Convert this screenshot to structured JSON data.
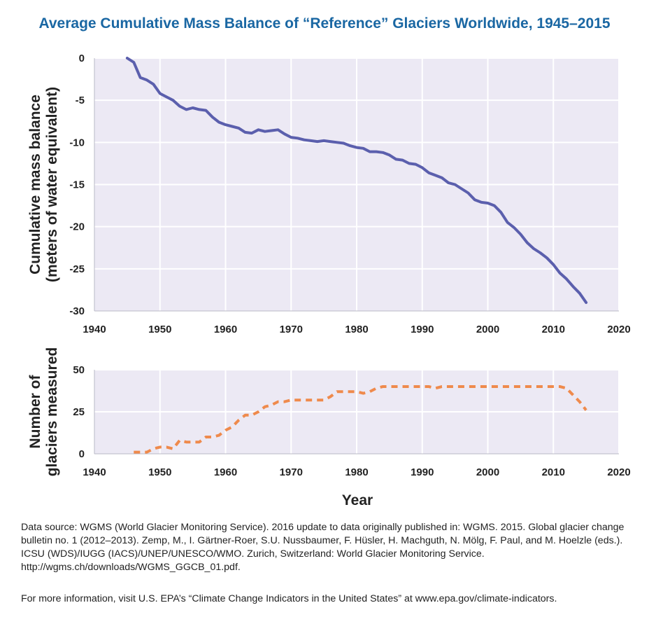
{
  "title": "Average Cumulative Mass Balance of “Reference” Glaciers Worldwide, 1945–2015",
  "colors": {
    "title": "#1a67a3",
    "plot_bg": "#ece9f4",
    "grid": "#ffffff",
    "mass_line": "#5b5fad",
    "count_line": "#ef8a4c"
  },
  "chart_data": [
    {
      "type": "line",
      "ylabel_lines": [
        "Cumulative mass balance",
        "(meters of water equivalent)"
      ],
      "xlim": [
        1940,
        2020
      ],
      "ylim": [
        -30,
        0
      ],
      "xticks": [
        1940,
        1950,
        1960,
        1970,
        1980,
        1990,
        2000,
        2010,
        2020
      ],
      "yticks": [
        0,
        -5,
        -10,
        -15,
        -20,
        -25,
        -30
      ],
      "grid": true,
      "series": [
        {
          "style": "solid",
          "x": [
            1945,
            1946,
            1947,
            1948,
            1949,
            1950,
            1951,
            1952,
            1953,
            1954,
            1955,
            1956,
            1957,
            1958,
            1959,
            1960,
            1961,
            1962,
            1963,
            1964,
            1965,
            1966,
            1967,
            1968,
            1969,
            1970,
            1971,
            1972,
            1973,
            1974,
            1975,
            1976,
            1977,
            1978,
            1979,
            1980,
            1981,
            1982,
            1983,
            1984,
            1985,
            1986,
            1987,
            1988,
            1989,
            1990,
            1991,
            1992,
            1993,
            1994,
            1995,
            1996,
            1997,
            1998,
            1999,
            2000,
            2001,
            2002,
            2003,
            2004,
            2005,
            2006,
            2007,
            2008,
            2009,
            2010,
            2011,
            2012,
            2013,
            2014,
            2015
          ],
          "values": [
            0,
            -0.5,
            -2.3,
            -2.6,
            -3.1,
            -4.2,
            -4.6,
            -5.0,
            -5.7,
            -6.1,
            -5.9,
            -6.1,
            -6.2,
            -7.0,
            -7.6,
            -7.9,
            -8.1,
            -8.3,
            -8.8,
            -8.9,
            -8.5,
            -8.7,
            -8.6,
            -8.5,
            -9.0,
            -9.4,
            -9.5,
            -9.7,
            -9.8,
            -9.9,
            -9.8,
            -9.9,
            -10.0,
            -10.1,
            -10.4,
            -10.6,
            -10.7,
            -11.1,
            -11.1,
            -11.2,
            -11.5,
            -12.0,
            -12.1,
            -12.5,
            -12.6,
            -13.0,
            -13.6,
            -13.9,
            -14.2,
            -14.8,
            -15.0,
            -15.5,
            -16.0,
            -16.8,
            -17.1,
            -17.2,
            -17.5,
            -18.3,
            -19.5,
            -20.1,
            -20.9,
            -21.9,
            -22.6,
            -23.1,
            -23.7,
            -24.5,
            -25.5,
            -26.2,
            -27.1,
            -27.9,
            -29.0
          ]
        }
      ]
    },
    {
      "type": "line",
      "ylabel_lines": [
        "Number of",
        "glaciers measured"
      ],
      "xlabel": "Year",
      "xlim": [
        1940,
        2020
      ],
      "ylim": [
        0,
        50
      ],
      "xticks": [
        1940,
        1950,
        1960,
        1970,
        1980,
        1990,
        2000,
        2010,
        2020
      ],
      "yticks": [
        0,
        25,
        50
      ],
      "grid": true,
      "series": [
        {
          "style": "dashed",
          "x": [
            1946,
            1947,
            1948,
            1949,
            1950,
            1951,
            1952,
            1953,
            1954,
            1955,
            1956,
            1957,
            1958,
            1959,
            1960,
            1961,
            1962,
            1963,
            1964,
            1965,
            1966,
            1967,
            1968,
            1969,
            1970,
            1971,
            1972,
            1973,
            1974,
            1975,
            1976,
            1977,
            1978,
            1979,
            1980,
            1981,
            1982,
            1983,
            1984,
            1985,
            1986,
            1987,
            1988,
            1989,
            1990,
            1991,
            1992,
            1993,
            1994,
            1995,
            1996,
            1997,
            1998,
            1999,
            2000,
            2001,
            2002,
            2003,
            2004,
            2005,
            2006,
            2007,
            2008,
            2009,
            2010,
            2011,
            2012,
            2013,
            2014,
            2015
          ],
          "values": [
            1,
            1,
            1,
            3,
            4,
            4,
            3,
            8,
            7,
            7,
            7,
            10,
            10,
            11,
            14,
            16,
            20,
            23,
            23,
            25,
            28,
            29,
            31,
            31,
            32,
            32,
            32,
            32,
            32,
            32,
            34,
            37,
            37,
            37,
            37,
            36,
            37,
            39,
            40,
            40,
            40,
            40,
            40,
            40,
            40,
            40,
            39,
            40,
            40,
            40,
            40,
            40,
            40,
            40,
            40,
            40,
            40,
            40,
            40,
            40,
            40,
            40,
            40,
            40,
            40,
            40,
            39,
            35,
            31,
            26
          ]
        }
      ]
    }
  ],
  "footnote": {
    "source": "Data source: WGMS (World Glacier Monitoring Service). 2016 update to data originally published in: WGMS. 2015. Global glacier change bulletin no. 1 (2012–2013). Zemp, M., I. Gärtner-Roer, S.U. Nussbaumer, F. Hüsler, H. Machguth, N. Mölg, F. Paul, and M. Hoelzle (eds.). ICSU (WDS)/IUGG (IACS)/UNEP/UNESCO/WMO. Zurich, Switzerland: World Glacier Monitoring Service. http://wgms.ch/downloads/WGMS_GGCB_01.pdf.",
    "more_info": "For more information, visit U.S. EPA’s “Climate Change Indicators in the United States” at www.epa.gov/climate-indicators."
  }
}
